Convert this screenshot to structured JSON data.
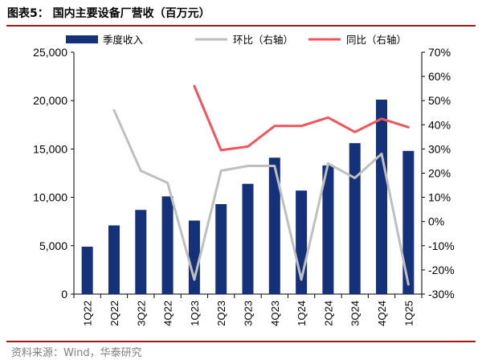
{
  "title": "图表5：  国内主要设备厂营收（百万元）",
  "source": "资料来源：Wind，华泰研究",
  "colors": {
    "bar": "#14317a",
    "qoq": "#bfbfbf",
    "yoy": "#f2545b",
    "rule": "#9a1c1c"
  },
  "chart_data": {
    "type": "bar",
    "categories": [
      "1Q22",
      "2Q22",
      "3Q22",
      "4Q22",
      "1Q23",
      "2Q23",
      "3Q23",
      "4Q23",
      "1Q24",
      "2Q24",
      "3Q24",
      "4Q24",
      "1Q25"
    ],
    "left_axis": {
      "ylim": [
        0,
        25000
      ],
      "ticks": [
        "0",
        "5,000",
        "10,000",
        "15,000",
        "20,000",
        "25,000"
      ],
      "tick_values": [
        0,
        5000,
        10000,
        15000,
        20000,
        25000
      ]
    },
    "right_axis": {
      "ylim": [
        -30,
        70
      ],
      "ticks": [
        "-30%",
        "-20%",
        "-10%",
        "0%",
        "10%",
        "20%",
        "30%",
        "40%",
        "50%",
        "60%",
        "70%"
      ],
      "tick_values": [
        -30,
        -20,
        -10,
        0,
        10,
        20,
        30,
        40,
        50,
        60,
        70
      ]
    },
    "series": [
      {
        "name": "季度收入",
        "type": "bar",
        "axis": "left",
        "values": [
          4900,
          7100,
          8700,
          10100,
          7600,
          9300,
          11400,
          14100,
          10700,
          13300,
          15600,
          20100,
          14800
        ]
      },
      {
        "name": "环比（右轴）",
        "type": "line",
        "axis": "right",
        "values": [
          null,
          46,
          21,
          16,
          -24,
          21,
          23,
          23,
          -24,
          24,
          18,
          28,
          -26
        ]
      },
      {
        "name": "同比（右轴）",
        "type": "line",
        "axis": "right",
        "values": [
          null,
          null,
          null,
          null,
          56,
          29.5,
          31,
          39.5,
          39.5,
          43,
          37,
          42.5,
          39
        ]
      }
    ],
    "grid": false,
    "legend_position": "top"
  }
}
